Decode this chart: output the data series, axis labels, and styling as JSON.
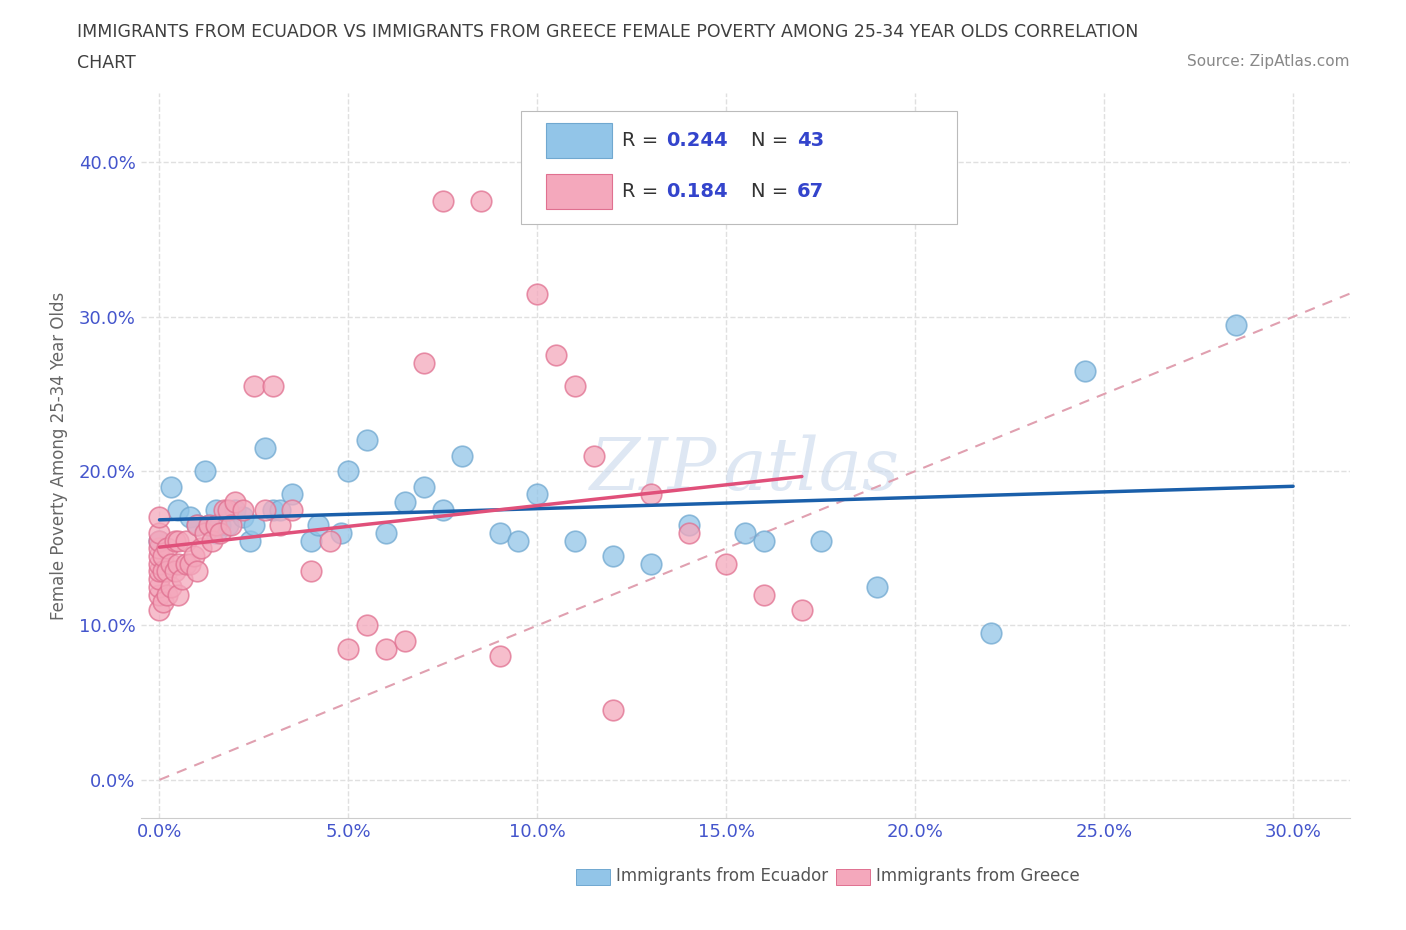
{
  "title_line1": "IMMIGRANTS FROM ECUADOR VS IMMIGRANTS FROM GREECE FEMALE POVERTY AMONG 25-34 YEAR OLDS CORRELATION",
  "title_line2": "CHART",
  "source": "Source: ZipAtlas.com",
  "xlabel_ticks": [
    0.0,
    0.05,
    0.1,
    0.15,
    0.2,
    0.25,
    0.3
  ],
  "ylabel_ticks": [
    0.0,
    0.1,
    0.2,
    0.3,
    0.4
  ],
  "xlim": [
    -0.005,
    0.315
  ],
  "ylim": [
    -0.025,
    0.445
  ],
  "ecuador_color": "#92c5e8",
  "ecuador_edge_color": "#70a8d0",
  "greece_color": "#f4a8bc",
  "greece_edge_color": "#e07090",
  "ecuador_line_color": "#1a5faa",
  "greece_line_color": "#e0507a",
  "diagonal_color": "#e0a0b0",
  "watermark": "ZIPAtlas",
  "background_color": "#ffffff",
  "grid_color": "#e0e0e0",
  "grid_style": "--",
  "title_color": "#404040",
  "source_color": "#888888",
  "tick_color": "#4455cc",
  "ecuador_scatter_x": [
    0.0,
    0.003,
    0.005,
    0.008,
    0.01,
    0.012,
    0.013,
    0.015,
    0.015,
    0.016,
    0.018,
    0.02,
    0.022,
    0.024,
    0.025,
    0.028,
    0.03,
    0.032,
    0.035,
    0.04,
    0.042,
    0.048,
    0.05,
    0.055,
    0.06,
    0.065,
    0.07,
    0.075,
    0.08,
    0.09,
    0.095,
    0.1,
    0.11,
    0.12,
    0.13,
    0.14,
    0.155,
    0.16,
    0.175,
    0.19,
    0.22,
    0.245,
    0.285
  ],
  "ecuador_scatter_y": [
    0.155,
    0.19,
    0.175,
    0.17,
    0.165,
    0.2,
    0.165,
    0.175,
    0.16,
    0.165,
    0.165,
    0.175,
    0.17,
    0.155,
    0.165,
    0.215,
    0.175,
    0.175,
    0.185,
    0.155,
    0.165,
    0.16,
    0.2,
    0.22,
    0.16,
    0.18,
    0.19,
    0.175,
    0.21,
    0.16,
    0.155,
    0.185,
    0.155,
    0.145,
    0.14,
    0.165,
    0.16,
    0.155,
    0.155,
    0.125,
    0.095,
    0.265,
    0.295
  ],
  "greece_scatter_x": [
    0.0,
    0.0,
    0.0,
    0.0,
    0.0,
    0.0,
    0.0,
    0.0,
    0.0,
    0.0,
    0.0,
    0.001,
    0.001,
    0.001,
    0.002,
    0.002,
    0.002,
    0.003,
    0.003,
    0.004,
    0.004,
    0.005,
    0.005,
    0.005,
    0.006,
    0.007,
    0.007,
    0.008,
    0.009,
    0.01,
    0.01,
    0.011,
    0.012,
    0.013,
    0.014,
    0.015,
    0.016,
    0.017,
    0.018,
    0.019,
    0.02,
    0.022,
    0.025,
    0.028,
    0.03,
    0.032,
    0.035,
    0.04,
    0.045,
    0.05,
    0.055,
    0.06,
    0.065,
    0.07,
    0.075,
    0.085,
    0.09,
    0.1,
    0.105,
    0.11,
    0.115,
    0.12,
    0.13,
    0.14,
    0.15,
    0.16,
    0.17
  ],
  "greece_scatter_y": [
    0.11,
    0.12,
    0.125,
    0.13,
    0.135,
    0.14,
    0.145,
    0.15,
    0.155,
    0.16,
    0.17,
    0.115,
    0.135,
    0.145,
    0.12,
    0.135,
    0.15,
    0.125,
    0.14,
    0.135,
    0.155,
    0.12,
    0.14,
    0.155,
    0.13,
    0.14,
    0.155,
    0.14,
    0.145,
    0.135,
    0.165,
    0.15,
    0.16,
    0.165,
    0.155,
    0.165,
    0.16,
    0.175,
    0.175,
    0.165,
    0.18,
    0.175,
    0.255,
    0.175,
    0.255,
    0.165,
    0.175,
    0.135,
    0.155,
    0.085,
    0.1,
    0.085,
    0.09,
    0.27,
    0.375,
    0.375,
    0.08,
    0.315,
    0.275,
    0.255,
    0.21,
    0.045,
    0.185,
    0.16,
    0.14,
    0.12,
    0.11
  ],
  "r_ecuador": 0.244,
  "n_ecuador": 43,
  "r_greece": 0.184,
  "n_greece": 67
}
